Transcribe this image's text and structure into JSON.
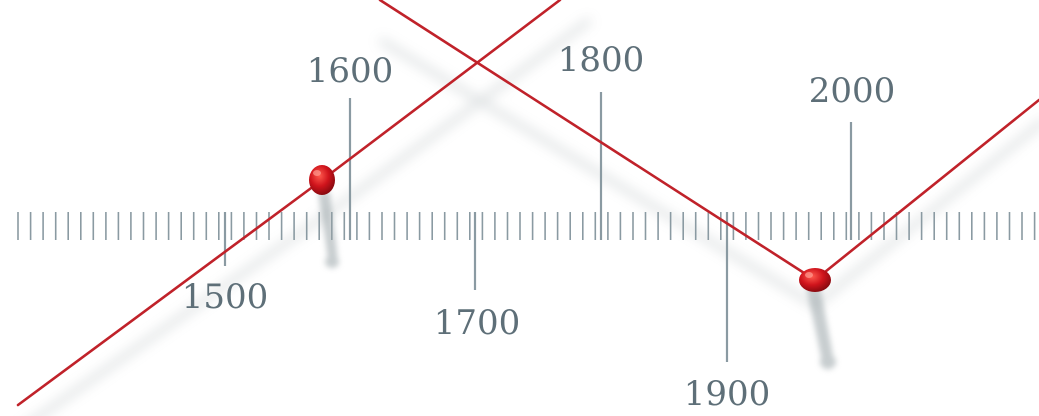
{
  "timeline": {
    "labels_above": [
      "1600",
      "1800",
      "2000"
    ],
    "labels_below": [
      "1500",
      "1700",
      "1900"
    ]
  },
  "colors": {
    "background": "#ffffff",
    "tick": "#8a9aa2",
    "label": "#5e6f78",
    "thread": "#c0222a",
    "pin": "#d0141c",
    "shadow": "#9aa4a8"
  },
  "elements": {
    "threads": [
      "red-thread-rising",
      "red-thread-v-shape"
    ],
    "pins": [
      "red-pin-left",
      "red-pin-right"
    ]
  }
}
